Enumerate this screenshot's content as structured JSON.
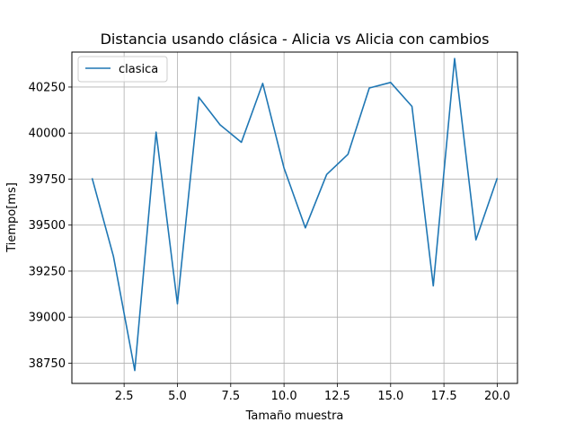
{
  "chart_data": {
    "type": "line",
    "title": "Distancia usando clásica - Alicia vs Alicia con cambios",
    "xlabel": "Tamaño muestra",
    "ylabel": "Tiempo[ms]",
    "xlim": [
      0.05,
      20.95
    ],
    "ylim": [
      38640,
      40440
    ],
    "xticks": [
      2.5,
      5.0,
      7.5,
      10.0,
      12.5,
      15.0,
      17.5,
      20.0
    ],
    "xtick_labels": [
      "2.5",
      "5.0",
      "7.5",
      "10.0",
      "12.5",
      "15.0",
      "17.5",
      "20.0"
    ],
    "yticks": [
      38750,
      39000,
      39250,
      39500,
      39750,
      40000,
      40250
    ],
    "ytick_labels": [
      "38750",
      "39000",
      "39250",
      "39500",
      "39750",
      "40000",
      "40250"
    ],
    "grid": true,
    "legend_position": "top-left",
    "series": [
      {
        "name": "clasica",
        "color": "#1f77b4",
        "x": [
          1,
          2,
          3,
          4,
          5,
          6,
          7,
          8,
          9,
          10,
          11,
          12,
          13,
          14,
          15,
          16,
          17,
          18,
          19,
          20
        ],
        "y": [
          39755,
          39330,
          38710,
          40005,
          39072,
          40195,
          40045,
          39950,
          40270,
          39810,
          39485,
          39775,
          39885,
          40245,
          40275,
          40145,
          39170,
          40405,
          39420,
          39755
        ]
      }
    ]
  }
}
